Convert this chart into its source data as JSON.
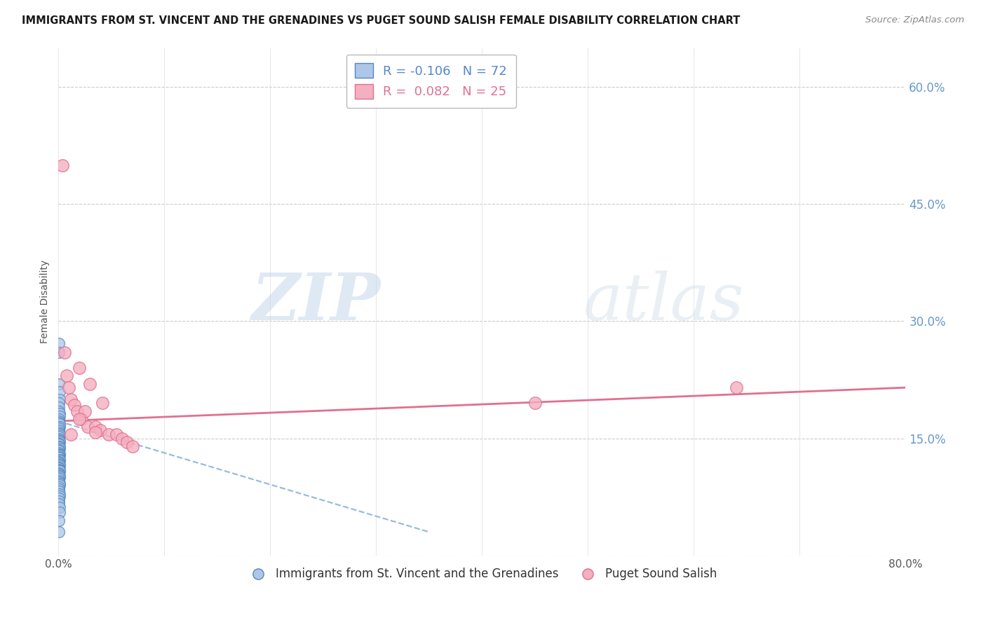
{
  "title": "IMMIGRANTS FROM ST. VINCENT AND THE GRENADINES VS PUGET SOUND SALISH FEMALE DISABILITY CORRELATION CHART",
  "source": "Source: ZipAtlas.com",
  "ylabel": "Female Disability",
  "xlim": [
    0.0,
    0.8
  ],
  "ylim": [
    0.0,
    0.65
  ],
  "yticks": [
    0.0,
    0.15,
    0.3,
    0.45,
    0.6
  ],
  "xticks": [
    0.0,
    0.1,
    0.2,
    0.3,
    0.4,
    0.5,
    0.6,
    0.7,
    0.8
  ],
  "xtick_labels": [
    "0.0%",
    "",
    "",
    "",
    "",
    "",
    "",
    "",
    "80.0%"
  ],
  "right_ytick_labels": [
    "60.0%",
    "45.0%",
    "30.0%",
    "15.0%"
  ],
  "right_ytick_positions": [
    0.6,
    0.45,
    0.3,
    0.15
  ],
  "blue_R": -0.106,
  "blue_N": 72,
  "pink_R": 0.082,
  "pink_N": 25,
  "blue_color": "#aec6e8",
  "pink_color": "#f4afc0",
  "blue_edge_color": "#5588bb",
  "pink_edge_color": "#e07090",
  "blue_dashed_color": "#99bbdd",
  "pink_line_color": "#e07090",
  "watermark_zip": "ZIP",
  "watermark_atlas": "atlas",
  "blue_points_x": [
    0.0005,
    0.0008,
    0.001,
    0.0012,
    0.0015,
    0.0005,
    0.0008,
    0.001,
    0.0012,
    0.0015,
    0.0005,
    0.0008,
    0.001,
    0.0012,
    0.0015,
    0.0005,
    0.0008,
    0.001,
    0.0012,
    0.0015,
    0.0005,
    0.0008,
    0.001,
    0.0012,
    0.0015,
    0.0005,
    0.0008,
    0.001,
    0.0012,
    0.0015,
    0.0005,
    0.0008,
    0.001,
    0.0012,
    0.0015,
    0.0005,
    0.0008,
    0.001,
    0.0012,
    0.0015,
    0.0005,
    0.0008,
    0.001,
    0.0012,
    0.0015,
    0.0005,
    0.0008,
    0.001,
    0.0012,
    0.0015,
    0.0005,
    0.0008,
    0.001,
    0.0012,
    0.0015,
    0.0005,
    0.0008,
    0.001,
    0.0012,
    0.0015,
    0.0005,
    0.0008,
    0.001,
    0.0012,
    0.0015,
    0.0005,
    0.0008,
    0.001,
    0.0012,
    0.0015,
    0.0005,
    0.0008
  ],
  "blue_points_y": [
    0.272,
    0.26,
    0.22,
    0.21,
    0.2,
    0.195,
    0.19,
    0.185,
    0.182,
    0.178,
    0.175,
    0.172,
    0.17,
    0.168,
    0.165,
    0.163,
    0.16,
    0.158,
    0.156,
    0.154,
    0.152,
    0.15,
    0.148,
    0.147,
    0.145,
    0.143,
    0.142,
    0.14,
    0.139,
    0.137,
    0.135,
    0.134,
    0.132,
    0.13,
    0.129,
    0.128,
    0.126,
    0.125,
    0.123,
    0.122,
    0.12,
    0.119,
    0.117,
    0.116,
    0.115,
    0.113,
    0.112,
    0.11,
    0.109,
    0.108,
    0.106,
    0.105,
    0.103,
    0.102,
    0.1,
    0.098,
    0.096,
    0.094,
    0.092,
    0.09,
    0.088,
    0.085,
    0.082,
    0.079,
    0.076,
    0.073,
    0.07,
    0.066,
    0.062,
    0.055,
    0.045,
    0.03
  ],
  "pink_points_x": [
    0.004,
    0.006,
    0.008,
    0.01,
    0.012,
    0.015,
    0.018,
    0.02,
    0.022,
    0.025,
    0.028,
    0.03,
    0.035,
    0.04,
    0.042,
    0.048,
    0.055,
    0.06,
    0.065,
    0.07,
    0.012,
    0.02,
    0.035,
    0.45,
    0.64
  ],
  "pink_points_y": [
    0.5,
    0.26,
    0.23,
    0.215,
    0.2,
    0.193,
    0.185,
    0.24,
    0.175,
    0.185,
    0.165,
    0.22,
    0.165,
    0.16,
    0.195,
    0.155,
    0.155,
    0.15,
    0.145,
    0.14,
    0.155,
    0.175,
    0.158,
    0.195,
    0.215
  ],
  "blue_trend_x": [
    0.0,
    0.35
  ],
  "blue_trend_y": [
    0.172,
    0.03
  ],
  "pink_trend_x": [
    0.0,
    0.8
  ],
  "pink_trend_y": [
    0.172,
    0.215
  ]
}
